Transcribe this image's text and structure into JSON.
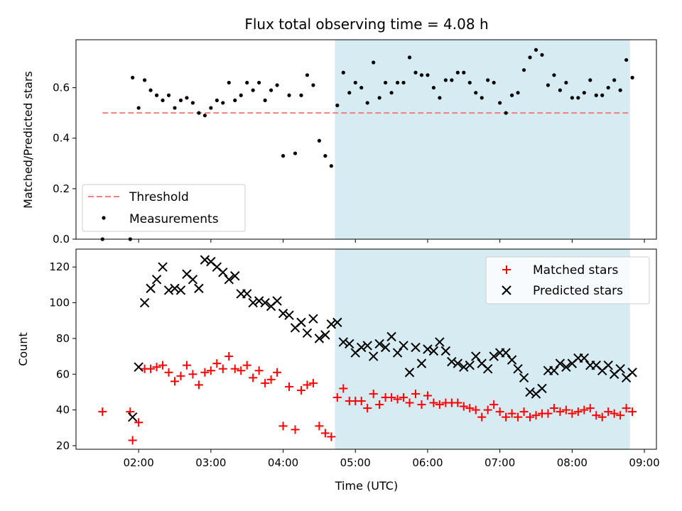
{
  "figure": {
    "title": "Flux total observing time = 4.08 h",
    "xlabel": "Time (UTC)"
  },
  "colors": {
    "shade": "#add8e6",
    "threshold": "#f08080",
    "measurements": "#000000",
    "matched": "#ff0000",
    "predicted": "#000000"
  },
  "chart_data": [
    {
      "type": "scatter",
      "panel": "top",
      "ylabel": "Matched/Predicted stars",
      "xlim": [
        "01:08",
        "09:10"
      ],
      "ylim": [
        0,
        0.79
      ],
      "xticks": [
        "02:00",
        "03:00",
        "04:00",
        "05:00",
        "06:00",
        "07:00",
        "08:00",
        "09:00"
      ],
      "yticks": [
        "0.0",
        "0.2",
        "0.4",
        "0.6"
      ],
      "shaded_region": [
        "04:43",
        "08:48"
      ],
      "legend_position": "lower-left",
      "threshold": {
        "name": "Threshold",
        "y": 0.5,
        "x": [
          "01:30",
          "08:48"
        ]
      },
      "series": [
        {
          "name": "Measurements",
          "points": [
            [
              "01:30",
              0
            ],
            [
              "01:53",
              0
            ],
            [
              "01:55",
              0.64
            ],
            [
              "02:00",
              0.52
            ],
            [
              "02:05",
              0.63
            ],
            [
              "02:10",
              0.59
            ],
            [
              "02:15",
              0.57
            ],
            [
              "02:20",
              0.55
            ],
            [
              "02:25",
              0.57
            ],
            [
              "02:30",
              0.52
            ],
            [
              "02:35",
              0.55
            ],
            [
              "02:40",
              0.56
            ],
            [
              "02:45",
              0.54
            ],
            [
              "02:50",
              0.5
            ],
            [
              "02:55",
              0.49
            ],
            [
              "03:00",
              0.52
            ],
            [
              "03:05",
              0.55
            ],
            [
              "03:10",
              0.54
            ],
            [
              "03:15",
              0.62
            ],
            [
              "03:20",
              0.55
            ],
            [
              "03:25",
              0.57
            ],
            [
              "03:30",
              0.62
            ],
            [
              "03:35",
              0.59
            ],
            [
              "03:40",
              0.62
            ],
            [
              "03:45",
              0.55
            ],
            [
              "03:50",
              0.59
            ],
            [
              "03:55",
              0.61
            ],
            [
              "04:00",
              0.33
            ],
            [
              "04:05",
              0.57
            ],
            [
              "04:10",
              0.34
            ],
            [
              "04:15",
              0.57
            ],
            [
              "04:20",
              0.65
            ],
            [
              "04:25",
              0.61
            ],
            [
              "04:30",
              0.39
            ],
            [
              "04:35",
              0.33
            ],
            [
              "04:40",
              0.29
            ],
            [
              "04:45",
              0.53
            ],
            [
              "04:50",
              0.66
            ],
            [
              "04:55",
              0.58
            ],
            [
              "05:00",
              0.62
            ],
            [
              "05:05",
              0.6
            ],
            [
              "05:10",
              0.54
            ],
            [
              "05:15",
              0.7
            ],
            [
              "05:20",
              0.56
            ],
            [
              "05:25",
              0.62
            ],
            [
              "05:30",
              0.58
            ],
            [
              "05:35",
              0.62
            ],
            [
              "05:40",
              0.62
            ],
            [
              "05:45",
              0.72
            ],
            [
              "05:50",
              0.66
            ],
            [
              "05:55",
              0.65
            ],
            [
              "06:00",
              0.65
            ],
            [
              "06:05",
              0.6
            ],
            [
              "06:10",
              0.56
            ],
            [
              "06:15",
              0.63
            ],
            [
              "06:20",
              0.63
            ],
            [
              "06:25",
              0.66
            ],
            [
              "06:30",
              0.66
            ],
            [
              "06:35",
              0.62
            ],
            [
              "06:40",
              0.58
            ],
            [
              "06:45",
              0.56
            ],
            [
              "06:50",
              0.63
            ],
            [
              "06:55",
              0.62
            ],
            [
              "07:00",
              0.54
            ],
            [
              "07:05",
              0.5
            ],
            [
              "07:10",
              0.57
            ],
            [
              "07:15",
              0.58
            ],
            [
              "07:20",
              0.67
            ],
            [
              "07:25",
              0.72
            ],
            [
              "07:30",
              0.75
            ],
            [
              "07:35",
              0.73
            ],
            [
              "07:40",
              0.61
            ],
            [
              "07:45",
              0.65
            ],
            [
              "07:50",
              0.59
            ],
            [
              "07:55",
              0.62
            ],
            [
              "08:00",
              0.56
            ],
            [
              "08:05",
              0.56
            ],
            [
              "08:10",
              0.58
            ],
            [
              "08:15",
              0.63
            ],
            [
              "08:20",
              0.57
            ],
            [
              "08:25",
              0.57
            ],
            [
              "08:30",
              0.6
            ],
            [
              "08:35",
              0.63
            ],
            [
              "08:40",
              0.59
            ],
            [
              "08:45",
              0.71
            ],
            [
              "08:50",
              0.64
            ]
          ]
        }
      ]
    },
    {
      "type": "scatter",
      "panel": "bottom",
      "ylabel": "Count",
      "xlim": [
        "01:08",
        "09:10"
      ],
      "ylim": [
        18,
        130
      ],
      "xticks": [
        "02:00",
        "03:00",
        "04:00",
        "05:00",
        "06:00",
        "07:00",
        "08:00",
        "09:00"
      ],
      "yticks": [
        "20",
        "40",
        "60",
        "80",
        "100",
        "120"
      ],
      "shaded_region": [
        "04:43",
        "08:48"
      ],
      "legend_position": "upper-right",
      "series": [
        {
          "name": "Matched stars",
          "marker": "+",
          "points": [
            [
              "01:30",
              39
            ],
            [
              "01:53",
              39
            ],
            [
              "01:55",
              23
            ],
            [
              "02:00",
              33
            ],
            [
              "02:05",
              63
            ],
            [
              "02:10",
              63
            ],
            [
              "02:15",
              64
            ],
            [
              "02:20",
              65
            ],
            [
              "02:25",
              61
            ],
            [
              "02:30",
              56
            ],
            [
              "02:35",
              59
            ],
            [
              "02:40",
              65
            ],
            [
              "02:45",
              60
            ],
            [
              "02:50",
              54
            ],
            [
              "02:55",
              61
            ],
            [
              "03:00",
              62
            ],
            [
              "03:05",
              66
            ],
            [
              "03:10",
              63
            ],
            [
              "03:15",
              70
            ],
            [
              "03:20",
              63
            ],
            [
              "03:25",
              62
            ],
            [
              "03:30",
              65
            ],
            [
              "03:35",
              58
            ],
            [
              "03:40",
              62
            ],
            [
              "03:45",
              55
            ],
            [
              "03:50",
              57
            ],
            [
              "03:55",
              61
            ],
            [
              "04:00",
              31
            ],
            [
              "04:05",
              53
            ],
            [
              "04:10",
              29
            ],
            [
              "04:15",
              51
            ],
            [
              "04:20",
              54
            ],
            [
              "04:25",
              55
            ],
            [
              "04:30",
              31
            ],
            [
              "04:35",
              27
            ],
            [
              "04:40",
              25
            ],
            [
              "04:45",
              47
            ],
            [
              "04:50",
              52
            ],
            [
              "04:55",
              45
            ],
            [
              "05:00",
              45
            ],
            [
              "05:05",
              45
            ],
            [
              "05:10",
              41
            ],
            [
              "05:15",
              49
            ],
            [
              "05:20",
              43
            ],
            [
              "05:25",
              47
            ],
            [
              "05:30",
              47
            ],
            [
              "05:35",
              46
            ],
            [
              "05:40",
              47
            ],
            [
              "05:45",
              44
            ],
            [
              "05:50",
              49
            ],
            [
              "05:55",
              43
            ],
            [
              "06:00",
              48
            ],
            [
              "06:05",
              44
            ],
            [
              "06:10",
              43
            ],
            [
              "06:15",
              44
            ],
            [
              "06:20",
              44
            ],
            [
              "06:25",
              44
            ],
            [
              "06:30",
              42
            ],
            [
              "06:35",
              41
            ],
            [
              "06:40",
              40
            ],
            [
              "06:45",
              36
            ],
            [
              "06:50",
              40
            ],
            [
              "06:55",
              43
            ],
            [
              "07:00",
              39
            ],
            [
              "07:05",
              36
            ],
            [
              "07:10",
              38
            ],
            [
              "07:15",
              36
            ],
            [
              "07:20",
              39
            ],
            [
              "07:25",
              36
            ],
            [
              "07:30",
              37
            ],
            [
              "07:35",
              38
            ],
            [
              "07:40",
              38
            ],
            [
              "07:45",
              41
            ],
            [
              "07:50",
              39
            ],
            [
              "07:55",
              40
            ],
            [
              "08:00",
              38
            ],
            [
              "08:05",
              39
            ],
            [
              "08:10",
              40
            ],
            [
              "08:15",
              41
            ],
            [
              "08:20",
              37
            ],
            [
              "08:25",
              36
            ],
            [
              "08:30",
              39
            ],
            [
              "08:35",
              38
            ],
            [
              "08:40",
              37
            ],
            [
              "08:45",
              41
            ],
            [
              "08:50",
              39
            ]
          ]
        },
        {
          "name": "Predicted stars",
          "marker": "x",
          "points": [
            [
              "01:55",
              36
            ],
            [
              "02:00",
              64
            ],
            [
              "02:05",
              100
            ],
            [
              "02:10",
              108
            ],
            [
              "02:15",
              113
            ],
            [
              "02:20",
              120
            ],
            [
              "02:25",
              107
            ],
            [
              "02:30",
              108
            ],
            [
              "02:35",
              107
            ],
            [
              "02:40",
              116
            ],
            [
              "02:45",
              113
            ],
            [
              "02:50",
              108
            ],
            [
              "02:55",
              124
            ],
            [
              "03:00",
              123
            ],
            [
              "03:05",
              120
            ],
            [
              "03:10",
              117
            ],
            [
              "03:15",
              113
            ],
            [
              "03:20",
              115
            ],
            [
              "03:25",
              105
            ],
            [
              "03:30",
              105
            ],
            [
              "03:35",
              100
            ],
            [
              "03:40",
              101
            ],
            [
              "03:45",
              100
            ],
            [
              "03:50",
              98
            ],
            [
              "03:55",
              101
            ],
            [
              "04:00",
              94
            ],
            [
              "04:05",
              93
            ],
            [
              "04:10",
              86
            ],
            [
              "04:15",
              89
            ],
            [
              "04:20",
              83
            ],
            [
              "04:25",
              91
            ],
            [
              "04:30",
              80
            ],
            [
              "04:35",
              82
            ],
            [
              "04:40",
              88
            ],
            [
              "04:45",
              89
            ],
            [
              "04:50",
              78
            ],
            [
              "04:55",
              77
            ],
            [
              "05:00",
              72
            ],
            [
              "05:05",
              75
            ],
            [
              "05:10",
              76
            ],
            [
              "05:15",
              70
            ],
            [
              "05:20",
              77
            ],
            [
              "05:25",
              75
            ],
            [
              "05:30",
              81
            ],
            [
              "05:35",
              72
            ],
            [
              "05:40",
              76
            ],
            [
              "05:45",
              61
            ],
            [
              "05:50",
              75
            ],
            [
              "05:55",
              66
            ],
            [
              "06:00",
              74
            ],
            [
              "06:05",
              73
            ],
            [
              "06:10",
              78
            ],
            [
              "06:15",
              73
            ],
            [
              "06:20",
              67
            ],
            [
              "06:25",
              66
            ],
            [
              "06:30",
              64
            ],
            [
              "06:35",
              65
            ],
            [
              "06:40",
              70
            ],
            [
              "06:45",
              66
            ],
            [
              "06:50",
              63
            ],
            [
              "06:55",
              70
            ],
            [
              "07:00",
              72
            ],
            [
              "07:05",
              72
            ],
            [
              "07:10",
              68
            ],
            [
              "07:15",
              63
            ],
            [
              "07:20",
              58
            ],
            [
              "07:25",
              50
            ],
            [
              "07:30",
              49
            ],
            [
              "07:35",
              52
            ],
            [
              "07:40",
              62
            ],
            [
              "07:45",
              62
            ],
            [
              "07:50",
              66
            ],
            [
              "07:55",
              64
            ],
            [
              "08:00",
              66
            ],
            [
              "08:05",
              69
            ],
            [
              "08:10",
              69
            ],
            [
              "08:15",
              65
            ],
            [
              "08:20",
              65
            ],
            [
              "08:25",
              62
            ],
            [
              "08:30",
              65
            ],
            [
              "08:35",
              60
            ],
            [
              "08:40",
              63
            ],
            [
              "08:45",
              58
            ],
            [
              "08:50",
              61
            ]
          ]
        }
      ]
    }
  ]
}
